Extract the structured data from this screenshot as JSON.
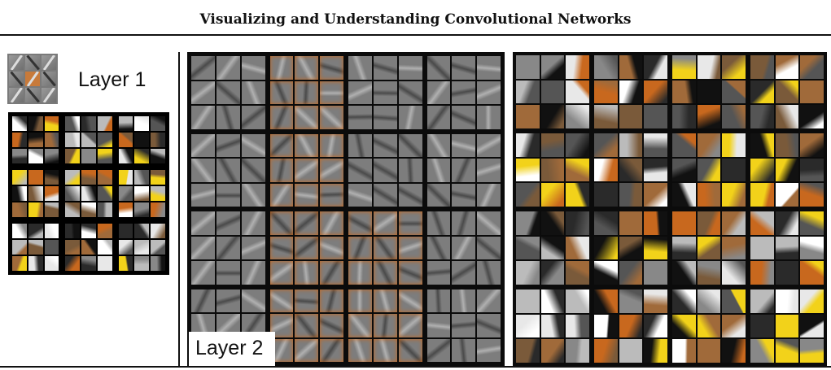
{
  "header": {
    "title": "Visualizing and Understanding Convolutional Networks"
  },
  "labels": {
    "layer1": "Layer 1",
    "layer2": "Layer 2"
  },
  "colors": {
    "filter_gray": "#7d7d7d",
    "accent_orange": "#c8681e",
    "accent_yellow": "#f2d21a",
    "frame_black": "#0b0b0b"
  }
}
